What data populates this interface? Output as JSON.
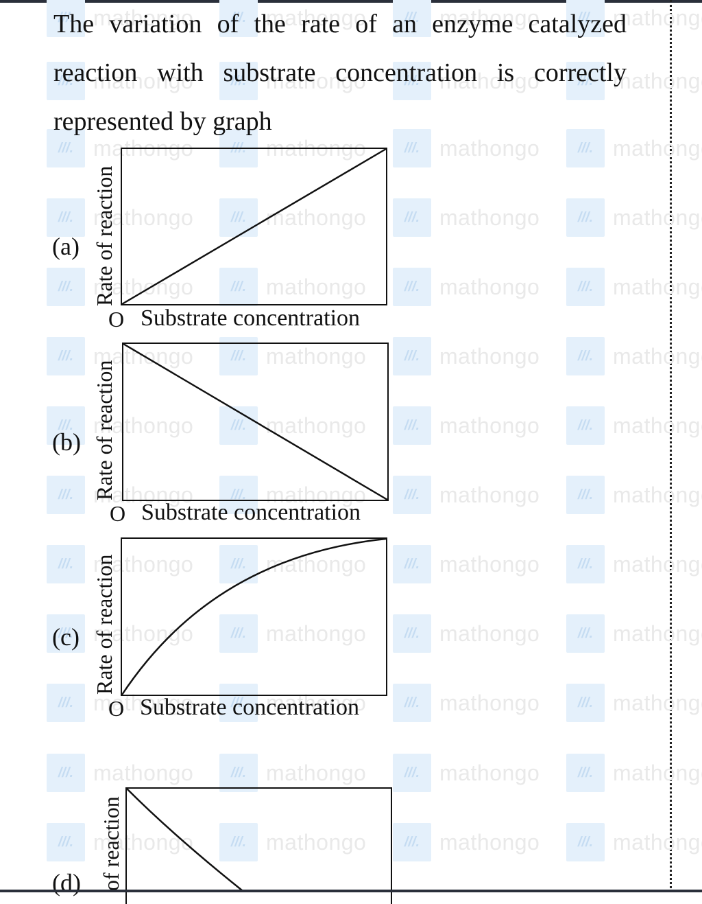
{
  "question": {
    "text": "The variation of the rate of an enzyme catalyzed reaction with substrate concentration is correctly represented by graph"
  },
  "watermark": {
    "text": "mathongo",
    "logo_glyph": "///.",
    "color": "#e9e9e9"
  },
  "options": [
    {
      "label": "(a)",
      "ylabel": "Rate of reaction",
      "origin": "O",
      "xlabel": "Substrate concentration",
      "curve": "linear-increase"
    },
    {
      "label": "(b)",
      "ylabel": "Rate of reaction",
      "origin": "O",
      "xlabel": "Substrate concentration",
      "curve": "linear-decrease"
    },
    {
      "label": "(c)",
      "ylabel": "Rate of reaction",
      "origin": "O",
      "xlabel": "Substrate concentration",
      "curve": "concave-increase"
    },
    {
      "label": "(d)",
      "ylabel": "of reaction",
      "curve": "concave-decrease"
    }
  ]
}
